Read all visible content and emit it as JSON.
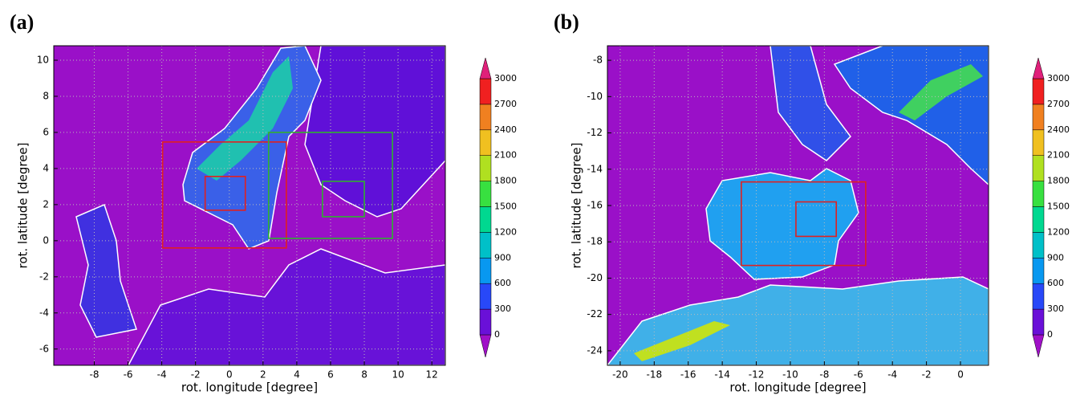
{
  "panels": [
    {
      "label": "(a)",
      "xlabel": "rot. longitude [degree]",
      "ylabel": "rot. latitude [degree]",
      "xlim": [
        -10.4,
        12.8
      ],
      "ylim": [
        -6.9,
        10.8
      ],
      "xticks": [
        -8,
        -6,
        -4,
        -2,
        0,
        2,
        4,
        6,
        8,
        10,
        12
      ],
      "yticks": [
        -6,
        -4,
        -2,
        0,
        2,
        4,
        6,
        8,
        10
      ],
      "grid": true,
      "boxes": [
        {
          "color": "#e02020",
          "x": [
            -3.95,
            3.38
          ],
          "y": [
            -0.4,
            5.47
          ]
        },
        {
          "color": "#e02020",
          "x": [
            -1.43,
            0.95
          ],
          "y": [
            1.69,
            3.56
          ]
        },
        {
          "color": "#30b030",
          "x": [
            2.33,
            9.67
          ],
          "y": [
            0.13,
            6.0
          ]
        },
        {
          "color": "#30b030",
          "x": [
            5.52,
            8.0
          ],
          "y": [
            1.33,
            3.29
          ]
        }
      ],
      "colorbar": {
        "ticks": [
          0,
          300,
          600,
          900,
          1200,
          1500,
          1800,
          2100,
          2400,
          2700,
          3000
        ],
        "colors": [
          "#a010c8",
          "#6a10d8",
          "#2848f8",
          "#0898f0",
          "#00c0c8",
          "#00d890",
          "#38e040",
          "#b0e020",
          "#f0c020",
          "#f08020",
          "#f02020",
          "#e0207a"
        ]
      }
    },
    {
      "label": "(b)",
      "xlabel": "rot. longitude [degree]",
      "ylabel": "rot. latitude [degree]",
      "xlim": [
        -20.75,
        1.65
      ],
      "ylim": [
        -24.8,
        -7.2
      ],
      "xticks": [
        -20,
        -18,
        -16,
        -14,
        -12,
        -10,
        -8,
        -6,
        -4,
        -2,
        0
      ],
      "yticks": [
        -24,
        -22,
        -20,
        -18,
        -16,
        -14,
        -12,
        -10,
        -8
      ],
      "grid": true,
      "boxes": [
        {
          "color": "#e02020",
          "x": [
            -12.88,
            -5.57
          ],
          "y": [
            -19.3,
            -14.7
          ]
        },
        {
          "color": "#e02020",
          "x": [
            -9.67,
            -7.3
          ],
          "y": [
            -17.7,
            -15.8
          ]
        }
      ],
      "colorbar": {
        "ticks": [
          0,
          300,
          600,
          900,
          1200,
          1500,
          1800,
          2100,
          2400,
          2700,
          3000
        ],
        "colors": [
          "#a010c8",
          "#6a10d8",
          "#2848f8",
          "#0898f0",
          "#00c0c8",
          "#00d890",
          "#38e040",
          "#b0e020",
          "#f0c020",
          "#f08020",
          "#f02020",
          "#e0207a"
        ]
      }
    }
  ]
}
